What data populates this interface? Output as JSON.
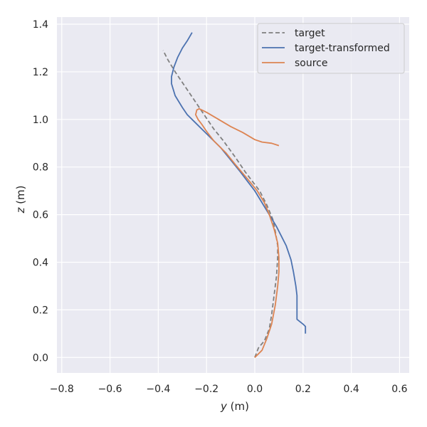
{
  "chart_data": {
    "type": "line",
    "xlabel_var": "y",
    "xlabel_unit": " (m)",
    "ylabel_var": "z",
    "ylabel_unit": " (m)",
    "xlim": [
      -0.82,
      0.64
    ],
    "ylim": [
      -0.065,
      1.43
    ],
    "xticks": [
      -0.8,
      -0.6,
      -0.4,
      -0.2,
      0.0,
      0.2,
      0.4,
      0.6
    ],
    "xtick_labels": [
      "−0.8",
      "−0.6",
      "−0.4",
      "−0.2",
      "0.0",
      "0.2",
      "0.4",
      "0.6"
    ],
    "yticks": [
      0.0,
      0.2,
      0.4,
      0.6,
      0.8,
      1.0,
      1.2,
      1.4
    ],
    "ytick_labels": [
      "0.0",
      "0.2",
      "0.4",
      "0.6",
      "0.8",
      "1.0",
      "1.2",
      "1.4"
    ],
    "grid": true,
    "legend_position": "top-right",
    "background_color": "#eaeaf2",
    "series": [
      {
        "name": "target",
        "color": "#7f7f7f",
        "dashed": true,
        "points": [
          [
            0.0,
            0.0
          ],
          [
            0.015,
            0.04
          ],
          [
            0.04,
            0.07
          ],
          [
            0.06,
            0.12
          ],
          [
            0.07,
            0.18
          ],
          [
            0.08,
            0.26
          ],
          [
            0.09,
            0.34
          ],
          [
            0.095,
            0.42
          ],
          [
            0.095,
            0.47
          ],
          [
            0.085,
            0.53
          ],
          [
            0.075,
            0.58
          ],
          [
            0.05,
            0.64
          ],
          [
            0.02,
            0.7
          ],
          [
            -0.01,
            0.74
          ],
          [
            -0.04,
            0.78
          ],
          [
            -0.08,
            0.84
          ],
          [
            -0.13,
            0.91
          ],
          [
            -0.17,
            0.96
          ],
          [
            -0.21,
            1.02
          ],
          [
            -0.25,
            1.08
          ],
          [
            -0.29,
            1.14
          ],
          [
            -0.33,
            1.2
          ],
          [
            -0.36,
            1.25
          ],
          [
            -0.38,
            1.29
          ]
        ]
      },
      {
        "name": "target-transformed",
        "color": "#4c72b0",
        "dashed": false,
        "points": [
          [
            0.21,
            0.1
          ],
          [
            0.21,
            0.13
          ],
          [
            0.2,
            0.14
          ],
          [
            0.175,
            0.16
          ],
          [
            0.175,
            0.26
          ],
          [
            0.17,
            0.3
          ],
          [
            0.16,
            0.36
          ],
          [
            0.15,
            0.41
          ],
          [
            0.13,
            0.47
          ],
          [
            0.11,
            0.51
          ],
          [
            0.09,
            0.55
          ],
          [
            0.06,
            0.6
          ],
          [
            0.03,
            0.65
          ],
          [
            0.0,
            0.7
          ],
          [
            -0.03,
            0.74
          ],
          [
            -0.06,
            0.78
          ],
          [
            -0.1,
            0.83
          ],
          [
            -0.14,
            0.88
          ],
          [
            -0.2,
            0.94
          ],
          [
            -0.25,
            0.99
          ],
          [
            -0.28,
            1.02
          ],
          [
            -0.3,
            1.05
          ],
          [
            -0.33,
            1.1
          ],
          [
            -0.345,
            1.15
          ],
          [
            -0.345,
            1.18
          ],
          [
            -0.335,
            1.22
          ],
          [
            -0.32,
            1.26
          ],
          [
            -0.3,
            1.3
          ],
          [
            -0.28,
            1.33
          ],
          [
            -0.26,
            1.365
          ]
        ]
      },
      {
        "name": "source",
        "color": "#dd8452",
        "dashed": false,
        "points": [
          [
            0.0,
            0.0
          ],
          [
            0.03,
            0.03
          ],
          [
            0.05,
            0.08
          ],
          [
            0.07,
            0.14
          ],
          [
            0.085,
            0.22
          ],
          [
            0.095,
            0.3
          ],
          [
            0.1,
            0.36
          ],
          [
            0.1,
            0.42
          ],
          [
            0.095,
            0.48
          ],
          [
            0.08,
            0.54
          ],
          [
            0.06,
            0.6
          ],
          [
            0.04,
            0.65
          ],
          [
            0.01,
            0.7
          ],
          [
            -0.03,
            0.75
          ],
          [
            -0.08,
            0.81
          ],
          [
            -0.12,
            0.86
          ],
          [
            -0.17,
            0.91
          ],
          [
            -0.2,
            0.95
          ],
          [
            -0.22,
            0.98
          ],
          [
            -0.235,
            1.0
          ],
          [
            -0.245,
            1.02
          ],
          [
            -0.24,
            1.04
          ],
          [
            -0.23,
            1.045
          ],
          [
            -0.2,
            1.03
          ],
          [
            -0.15,
            1.0
          ],
          [
            -0.1,
            0.97
          ],
          [
            -0.05,
            0.945
          ],
          [
            0.0,
            0.915
          ],
          [
            0.03,
            0.905
          ],
          [
            0.07,
            0.9
          ],
          [
            0.1,
            0.89
          ]
        ]
      }
    ]
  }
}
